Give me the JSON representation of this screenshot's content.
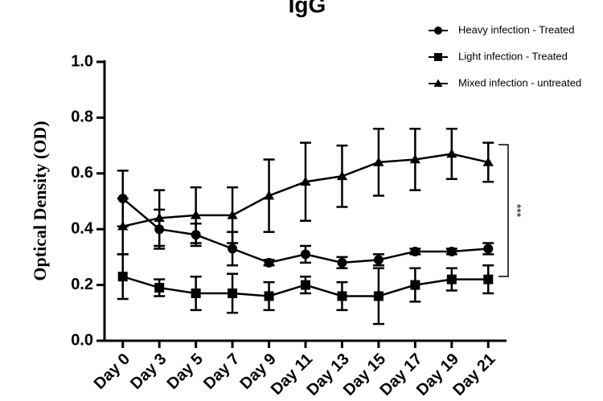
{
  "chart_data": {
    "type": "line",
    "title": "IgG",
    "ylabel": "Optical Density (OD)",
    "categories": [
      "Day 0",
      "Day 3",
      "Day 5",
      "Day 7",
      "Day 9",
      "Day 11",
      "Day 13",
      "Day 15",
      "Day 17",
      "Day 19",
      "Day 21"
    ],
    "series": [
      {
        "name": "Heavy infection - Treated",
        "color": "#000000",
        "marker": "circle",
        "values": [
          0.51,
          0.4,
          0.38,
          0.33,
          0.28,
          0.31,
          0.28,
          0.29,
          0.32,
          0.32,
          0.33
        ],
        "errors": [
          0.1,
          0.07,
          0.04,
          0.06,
          0.01,
          0.03,
          0.02,
          0.02,
          0.01,
          0.01,
          0.02
        ]
      },
      {
        "name": "Light infection - Treated",
        "color": "#000000",
        "marker": "square",
        "values": [
          0.23,
          0.19,
          0.17,
          0.17,
          0.16,
          0.2,
          0.16,
          0.16,
          0.2,
          0.22,
          0.22
        ],
        "errors": [
          0.08,
          0.03,
          0.06,
          0.07,
          0.05,
          0.03,
          0.05,
          0.1,
          0.06,
          0.04,
          0.05
        ]
      },
      {
        "name": "Mixed infection - untreated",
        "color": "#000000",
        "marker": "triangle",
        "values": [
          0.41,
          0.44,
          0.45,
          0.45,
          0.52,
          0.57,
          0.59,
          0.64,
          0.65,
          0.67,
          0.64
        ],
        "errors": [
          0.1,
          0.1,
          0.1,
          0.1,
          0.13,
          0.14,
          0.11,
          0.12,
          0.11,
          0.09,
          0.07
        ]
      }
    ],
    "ylim": [
      0,
      1
    ],
    "yticks": [
      {
        "value": 0,
        "label": "0.0"
      },
      0.2,
      0.4,
      0.6,
      0.8,
      {
        "value": 1,
        "label": "1.0"
      }
    ],
    "annotation": "***",
    "legend": "top-right"
  }
}
